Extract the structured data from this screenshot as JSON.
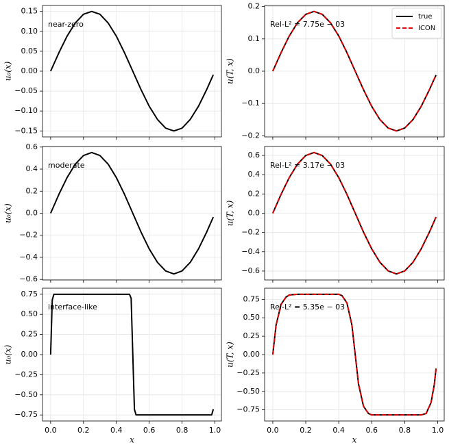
{
  "chart_data": [
    {
      "type": "line",
      "annotation": "near-zero",
      "ylabel": "u₀(x)",
      "x": [
        0,
        0.05,
        0.1,
        0.15,
        0.2,
        0.25,
        0.3,
        0.35,
        0.4,
        0.45,
        0.5,
        0.55,
        0.6,
        0.65,
        0.7,
        0.75,
        0.8,
        0.85,
        0.9,
        0.95,
        0.99
      ],
      "series": [
        {
          "color": "#000000",
          "linestyle": "solid",
          "values": [
            0,
            0.046,
            0.088,
            0.121,
            0.143,
            0.15,
            0.143,
            0.121,
            0.088,
            0.046,
            0,
            -0.046,
            -0.088,
            -0.121,
            -0.143,
            -0.15,
            -0.143,
            -0.121,
            -0.088,
            -0.046,
            -0.009
          ]
        }
      ],
      "xlim": [
        -0.0495,
        1.0395
      ],
      "xticks": [
        0,
        0.2,
        0.4,
        0.6,
        0.8,
        1
      ],
      "ylim": [
        -0.165,
        0.165
      ],
      "yticks": [
        {
          "value": -0.15,
          "label": "−0.15"
        },
        {
          "value": -0.1,
          "label": "−0.10"
        },
        {
          "value": -0.05,
          "label": "−0.05"
        },
        {
          "value": 0,
          "label": "0.00"
        },
        {
          "value": 0.05,
          "label": "0.05"
        },
        {
          "value": 0.1,
          "label": "0.10"
        },
        {
          "value": 0.15,
          "label": "0.15"
        }
      ],
      "grid": true
    },
    {
      "type": "line",
      "annotation": "Rel-L² = 7.75e − 03",
      "ylabel": "u(T, x)",
      "legend": "upper right",
      "x": [
        0,
        0.05,
        0.1,
        0.15,
        0.2,
        0.25,
        0.3,
        0.35,
        0.4,
        0.45,
        0.5,
        0.55,
        0.6,
        0.65,
        0.7,
        0.75,
        0.8,
        0.85,
        0.9,
        0.95,
        0.99
      ],
      "series": [
        {
          "name": "true",
          "color": "#000000",
          "linestyle": "solid",
          "values": [
            0,
            0.057,
            0.109,
            0.15,
            0.176,
            0.185,
            0.176,
            0.15,
            0.109,
            0.057,
            0,
            -0.057,
            -0.109,
            -0.15,
            -0.176,
            -0.185,
            -0.176,
            -0.15,
            -0.109,
            -0.057,
            -0.012
          ]
        },
        {
          "name": "ICON",
          "color": "#e00000",
          "linestyle": "dashed",
          "values": [
            0,
            0.057,
            0.109,
            0.15,
            0.176,
            0.185,
            0.176,
            0.15,
            0.109,
            0.057,
            0,
            -0.057,
            -0.109,
            -0.15,
            -0.176,
            -0.185,
            -0.176,
            -0.15,
            -0.109,
            -0.057,
            -0.012
          ]
        }
      ],
      "xlim": [
        -0.0495,
        1.0395
      ],
      "xticks": [
        0,
        0.2,
        0.4,
        0.6,
        0.8,
        1
      ],
      "ylim": [
        -0.2035,
        0.2035
      ],
      "yticks": [
        {
          "value": -0.2,
          "label": "−0.2"
        },
        {
          "value": -0.1,
          "label": "−0.1"
        },
        {
          "value": 0,
          "label": "0.0"
        },
        {
          "value": 0.1,
          "label": "0.1"
        },
        {
          "value": 0.2,
          "label": "0.2"
        }
      ],
      "grid": true
    },
    {
      "type": "line",
      "annotation": "moderate",
      "ylabel": "u₀(x)",
      "x": [
        0,
        0.05,
        0.1,
        0.15,
        0.2,
        0.25,
        0.3,
        0.35,
        0.4,
        0.45,
        0.5,
        0.55,
        0.6,
        0.65,
        0.7,
        0.75,
        0.8,
        0.85,
        0.9,
        0.95,
        0.99
      ],
      "series": [
        {
          "color": "#000000",
          "linestyle": "solid",
          "values": [
            0,
            0.17,
            0.323,
            0.445,
            0.523,
            0.55,
            0.523,
            0.445,
            0.323,
            0.17,
            0,
            -0.17,
            -0.323,
            -0.445,
            -0.523,
            -0.55,
            -0.523,
            -0.445,
            -0.323,
            -0.17,
            -0.035
          ]
        }
      ],
      "xlim": [
        -0.0495,
        1.0395
      ],
      "xticks": [
        0,
        0.2,
        0.4,
        0.6,
        0.8,
        1
      ],
      "ylim": [
        -0.605,
        0.605
      ],
      "yticks": [
        {
          "value": -0.6,
          "label": "−0.6"
        },
        {
          "value": -0.4,
          "label": "−0.4"
        },
        {
          "value": -0.2,
          "label": "−0.2"
        },
        {
          "value": 0,
          "label": "0.0"
        },
        {
          "value": 0.2,
          "label": "0.2"
        },
        {
          "value": 0.4,
          "label": "0.4"
        },
        {
          "value": 0.6,
          "label": "0.6"
        }
      ],
      "grid": true
    },
    {
      "type": "line",
      "annotation": "Rel-L² = 3.17e − 03",
      "ylabel": "u(T, x)",
      "x": [
        0,
        0.05,
        0.1,
        0.15,
        0.2,
        0.25,
        0.3,
        0.35,
        0.4,
        0.45,
        0.5,
        0.55,
        0.6,
        0.65,
        0.7,
        0.75,
        0.8,
        0.85,
        0.9,
        0.95,
        0.99
      ],
      "series": [
        {
          "color": "#000000",
          "linestyle": "solid",
          "values": [
            0,
            0.195,
            0.37,
            0.51,
            0.599,
            0.63,
            0.599,
            0.51,
            0.37,
            0.195,
            0,
            -0.195,
            -0.37,
            -0.51,
            -0.599,
            -0.63,
            -0.599,
            -0.51,
            -0.37,
            -0.195,
            -0.04
          ]
        },
        {
          "color": "#e00000",
          "linestyle": "dashed",
          "values": [
            0,
            0.195,
            0.37,
            0.51,
            0.599,
            0.63,
            0.599,
            0.51,
            0.37,
            0.195,
            0,
            -0.195,
            -0.37,
            -0.51,
            -0.599,
            -0.63,
            -0.599,
            -0.51,
            -0.37,
            -0.195,
            -0.04
          ]
        }
      ],
      "xlim": [
        -0.0495,
        1.0395
      ],
      "xticks": [
        0,
        0.2,
        0.4,
        0.6,
        0.8,
        1
      ],
      "ylim": [
        -0.693,
        0.693
      ],
      "yticks": [
        {
          "value": -0.6,
          "label": "−0.6"
        },
        {
          "value": -0.4,
          "label": "−0.4"
        },
        {
          "value": -0.2,
          "label": "−0.2"
        },
        {
          "value": 0,
          "label": "0.0"
        },
        {
          "value": 0.2,
          "label": "0.2"
        },
        {
          "value": 0.4,
          "label": "0.4"
        },
        {
          "value": 0.6,
          "label": "0.6"
        }
      ],
      "grid": true
    },
    {
      "type": "line",
      "annotation": "interface-like",
      "ylabel": "u₀(x)",
      "xlabel": "x",
      "x": [
        0,
        0.01,
        0.02,
        0.48,
        0.49,
        0.51,
        0.52,
        0.98,
        0.99
      ],
      "series": [
        {
          "color": "#000000",
          "linestyle": "solid",
          "values": [
            0,
            0.68,
            0.75,
            0.75,
            0.7,
            -0.68,
            -0.75,
            -0.75,
            -0.68
          ]
        }
      ],
      "xlim": [
        -0.0495,
        1.0395
      ],
      "xticks": [
        {
          "value": 0,
          "label": "0.0"
        },
        {
          "value": 0.2,
          "label": "0.2"
        },
        {
          "value": 0.4,
          "label": "0.4"
        },
        {
          "value": 0.6,
          "label": "0.6"
        },
        {
          "value": 0.8,
          "label": "0.8"
        },
        {
          "value": 1,
          "label": "1.0"
        }
      ],
      "ylim": [
        -0.825,
        0.825
      ],
      "yticks": [
        {
          "value": -0.75,
          "label": "−0.75"
        },
        {
          "value": -0.5,
          "label": "−0.50"
        },
        {
          "value": -0.25,
          "label": "−0.25"
        },
        {
          "value": 0,
          "label": "0.00"
        },
        {
          "value": 0.25,
          "label": "0.25"
        },
        {
          "value": 0.5,
          "label": "0.50"
        },
        {
          "value": 0.75,
          "label": "0.75"
        }
      ],
      "grid": true
    },
    {
      "type": "line",
      "annotation": "Rel-L² = 5.35e − 03",
      "ylabel": "u(T, x)",
      "xlabel": "x",
      "x": [
        0,
        0.02,
        0.05,
        0.08,
        0.1,
        0.15,
        0.2,
        0.25,
        0.3,
        0.35,
        0.4,
        0.42,
        0.45,
        0.48,
        0.5,
        0.52,
        0.55,
        0.58,
        0.6,
        0.65,
        0.7,
        0.75,
        0.8,
        0.85,
        0.9,
        0.93,
        0.96,
        0.98,
        0.99
      ],
      "series": [
        {
          "color": "#000000",
          "linestyle": "solid",
          "values": [
            0,
            0.4,
            0.68,
            0.78,
            0.81,
            0.82,
            0.82,
            0.82,
            0.82,
            0.82,
            0.82,
            0.8,
            0.7,
            0.4,
            0,
            -0.4,
            -0.7,
            -0.8,
            -0.82,
            -0.82,
            -0.82,
            -0.82,
            -0.82,
            -0.82,
            -0.82,
            -0.8,
            -0.65,
            -0.4,
            -0.19
          ]
        },
        {
          "color": "#e00000",
          "linestyle": "dashed",
          "values": [
            0,
            0.4,
            0.68,
            0.78,
            0.81,
            0.82,
            0.82,
            0.82,
            0.82,
            0.82,
            0.82,
            0.8,
            0.7,
            0.4,
            0,
            -0.4,
            -0.7,
            -0.8,
            -0.82,
            -0.82,
            -0.82,
            -0.82,
            -0.82,
            -0.82,
            -0.82,
            -0.8,
            -0.65,
            -0.4,
            -0.19
          ]
        }
      ],
      "xlim": [
        -0.0495,
        1.0395
      ],
      "xticks": [
        {
          "value": 0,
          "label": "0.0"
        },
        {
          "value": 0.2,
          "label": "0.2"
        },
        {
          "value": 0.4,
          "label": "0.4"
        },
        {
          "value": 0.6,
          "label": "0.6"
        },
        {
          "value": 0.8,
          "label": "0.8"
        },
        {
          "value": 1,
          "label": "1.0"
        }
      ],
      "ylim": [
        -0.902,
        0.902
      ],
      "yticks": [
        {
          "value": -0.75,
          "label": "−0.75"
        },
        {
          "value": -0.5,
          "label": "−0.50"
        },
        {
          "value": -0.25,
          "label": "−0.25"
        },
        {
          "value": 0,
          "label": "0.00"
        },
        {
          "value": 0.25,
          "label": "0.25"
        },
        {
          "value": 0.5,
          "label": "0.50"
        },
        {
          "value": 0.75,
          "label": "0.75"
        }
      ],
      "grid": true
    }
  ]
}
